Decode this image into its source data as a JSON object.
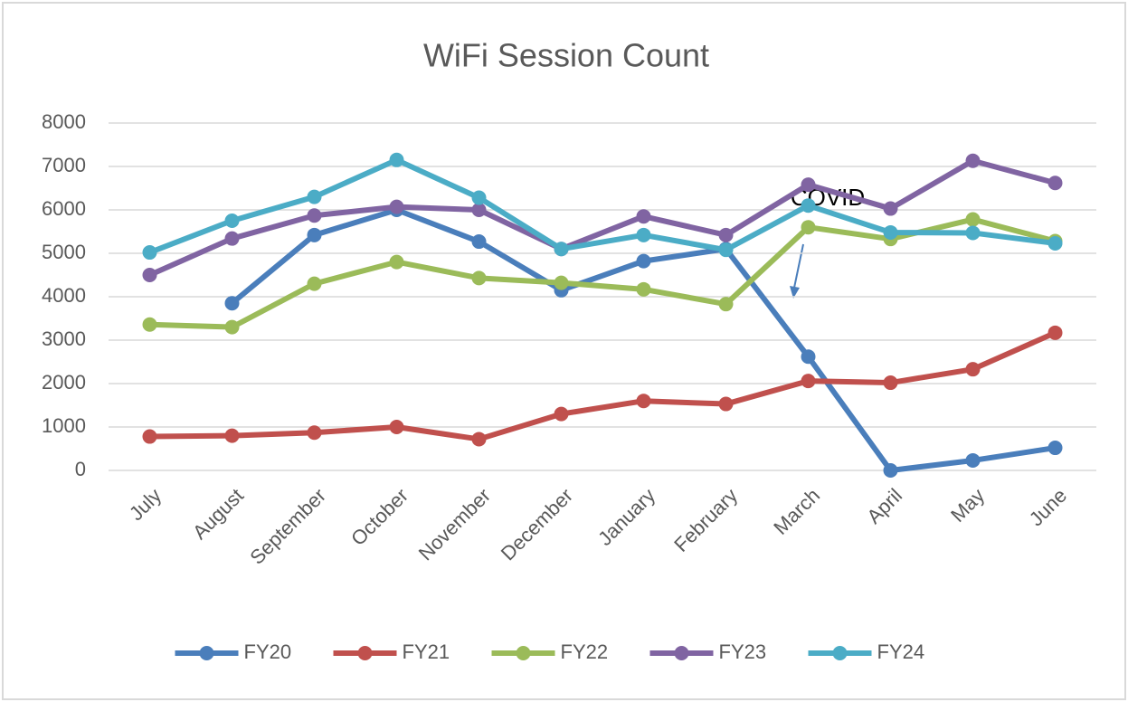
{
  "chart_data": {
    "type": "line",
    "title": "WiFi Session Count",
    "categories": [
      "July",
      "August",
      "September",
      "October",
      "November",
      "December",
      "January",
      "February",
      "March",
      "April",
      "May",
      "June"
    ],
    "series": [
      {
        "name": "FY20",
        "color": "#4a7ebb",
        "values": [
          null,
          3850,
          5420,
          6000,
          5270,
          4150,
          4820,
          5100,
          2620,
          0,
          230,
          520
        ]
      },
      {
        "name": "FY21",
        "color": "#c0504d",
        "values": [
          780,
          800,
          870,
          1000,
          720,
          1300,
          1600,
          1530,
          2060,
          2020,
          2330,
          3170
        ]
      },
      {
        "name": "FY22",
        "color": "#9bbb59",
        "values": [
          3360,
          3300,
          4300,
          4800,
          4430,
          4320,
          4170,
          3830,
          5600,
          5330,
          5780,
          5280
        ]
      },
      {
        "name": "FY23",
        "color": "#8064a2",
        "values": [
          4500,
          5340,
          5870,
          6070,
          6000,
          5100,
          5850,
          5420,
          6580,
          6030,
          7130,
          6620
        ]
      },
      {
        "name": "FY24",
        "color": "#4bacc6",
        "values": [
          5020,
          5750,
          6300,
          7150,
          6280,
          5100,
          5420,
          5080,
          6100,
          5480,
          5470,
          5230
        ]
      }
    ],
    "ylim": [
      0,
      8000
    ],
    "yticks": [
      0,
      1000,
      2000,
      3000,
      4000,
      5000,
      6000,
      7000,
      8000
    ],
    "grid": true,
    "legend": "bottom",
    "annotations": [
      "COVID"
    ]
  }
}
